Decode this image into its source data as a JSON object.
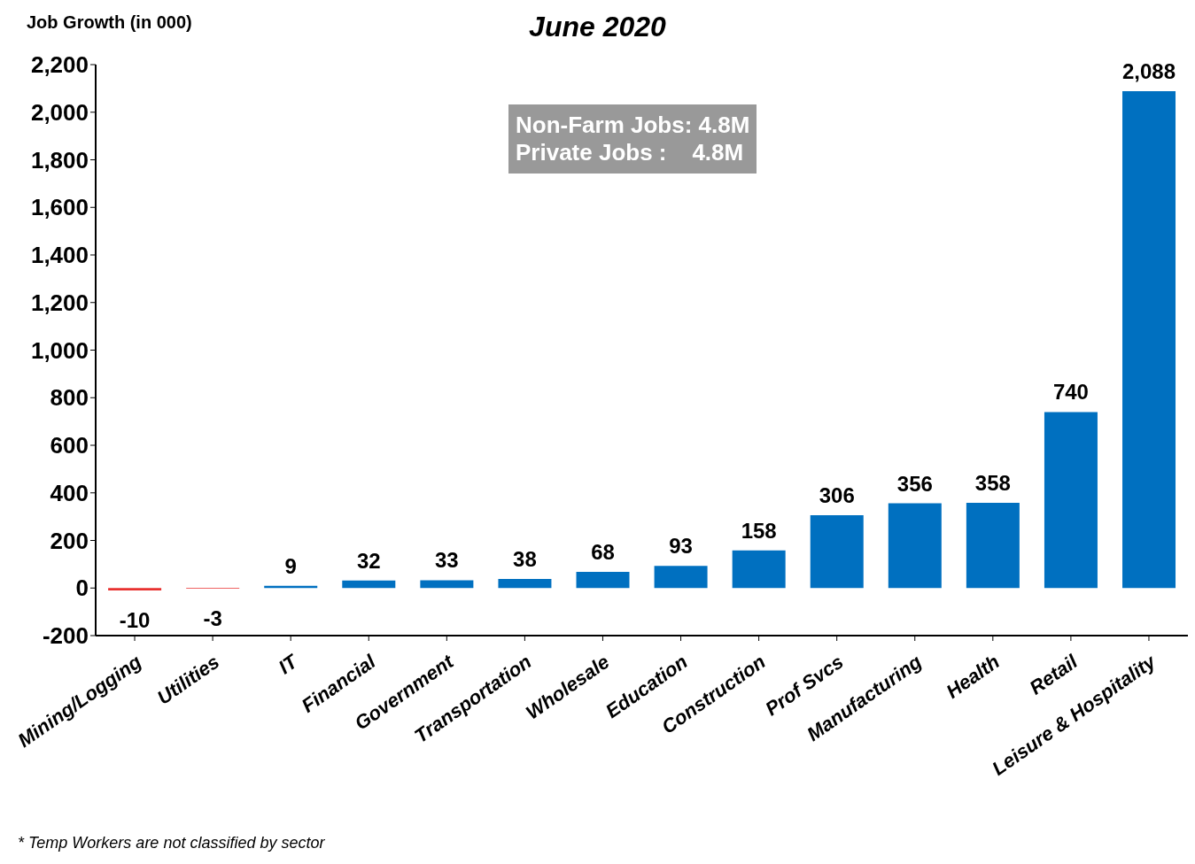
{
  "chart_data": {
    "type": "bar",
    "title": "June 2020",
    "ylabel": "Job Growth (in 000)",
    "categories": [
      "Mining/Logging",
      "Utilities",
      "IT",
      "Financial",
      "Government",
      "Transportation",
      "Wholesale",
      "Education",
      "Construction",
      "Prof Svcs",
      "Manufacturing",
      "Health",
      "Retail",
      "Leisure & Hospitality"
    ],
    "values": [
      -10,
      -3,
      9,
      32,
      33,
      38,
      68,
      93,
      158,
      306,
      356,
      358,
      740,
      2088
    ],
    "colors": [
      "#e8312f",
      "#e8312f",
      "#0070c0",
      "#0070c0",
      "#0070c0",
      "#0070c0",
      "#0070c0",
      "#0070c0",
      "#0070c0",
      "#0070c0",
      "#0070c0",
      "#0070c0",
      "#0070c0",
      "#0070c0"
    ],
    "ylim": [
      -200,
      2200
    ],
    "yticks": [
      -200,
      0,
      200,
      400,
      600,
      800,
      {
        "value": 1000,
        "label": "1,000"
      },
      {
        "value": 1200,
        "label": "1,200"
      },
      {
        "value": 1400,
        "label": "1,400"
      },
      {
        "value": 1600,
        "label": "1,600"
      },
      {
        "value": 1800,
        "label": "1,800"
      },
      {
        "value": 2000,
        "label": "2,000"
      },
      {
        "value": 2200,
        "label": "2,200"
      }
    ],
    "value_labels": [
      "-10",
      "-3",
      "9",
      "32",
      "33",
      "38",
      "68",
      "93",
      "158",
      "306",
      "356",
      "358",
      "740",
      "2,088"
    ],
    "grid": false,
    "legend": false,
    "annotations": [
      "Non-Farm Jobs: 4.8M",
      "Private Jobs :    4.8M",
      "* Temp Workers are not classified by sector"
    ]
  }
}
